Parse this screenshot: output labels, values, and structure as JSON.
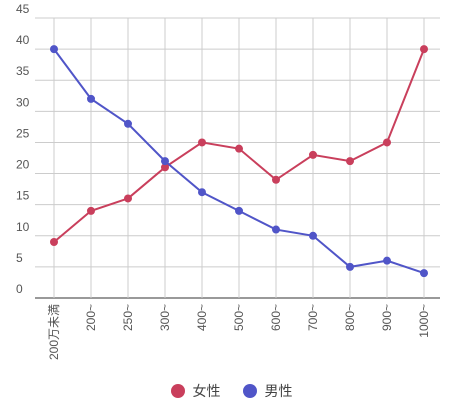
{
  "chart_data": {
    "type": "line",
    "title": "",
    "xlabel": "",
    "ylabel": "",
    "categories": [
      "200万未満",
      "200~",
      "250~",
      "300~",
      "400~",
      "500~",
      "600~",
      "700~",
      "800~",
      "900~",
      "1000~"
    ],
    "ylim": [
      0,
      45
    ],
    "yticks": [
      0,
      5,
      10,
      15,
      20,
      25,
      30,
      35,
      40,
      45
    ],
    "grid": true,
    "legend_position": "bottom",
    "series": [
      {
        "name": "女性",
        "color": "#c93f5c",
        "values": [
          9,
          14,
          16,
          21,
          25,
          24,
          19,
          23,
          22,
          25,
          40
        ]
      },
      {
        "name": "男性",
        "color": "#5055c8",
        "values": [
          40,
          32,
          28,
          22,
          17,
          14,
          11,
          10,
          5,
          6,
          4
        ]
      }
    ]
  }
}
